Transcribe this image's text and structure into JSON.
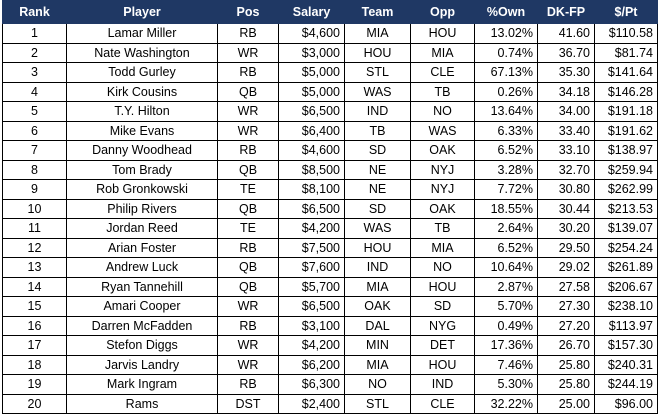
{
  "columns": [
    "Rank",
    "Player",
    "Pos",
    "Salary",
    "Team",
    "Opp",
    "%Own",
    "DK-FP",
    "$/Pt"
  ],
  "rows": [
    [
      "1",
      "Lamar Miller",
      "RB",
      "$4,600",
      "MIA",
      "HOU",
      "13.02%",
      "41.60",
      "$110.58"
    ],
    [
      "2",
      "Nate Washington",
      "WR",
      "$3,000",
      "HOU",
      "MIA",
      "0.74%",
      "36.70",
      "$81.74"
    ],
    [
      "3",
      "Todd Gurley",
      "RB",
      "$5,000",
      "STL",
      "CLE",
      "67.13%",
      "35.30",
      "$141.64"
    ],
    [
      "4",
      "Kirk Cousins",
      "QB",
      "$5,000",
      "WAS",
      "TB",
      "0.26%",
      "34.18",
      "$146.28"
    ],
    [
      "5",
      "T.Y. Hilton",
      "WR",
      "$6,500",
      "IND",
      "NO",
      "13.64%",
      "34.00",
      "$191.18"
    ],
    [
      "6",
      "Mike Evans",
      "WR",
      "$6,400",
      "TB",
      "WAS",
      "6.33%",
      "33.40",
      "$191.62"
    ],
    [
      "7",
      "Danny Woodhead",
      "RB",
      "$4,600",
      "SD",
      "OAK",
      "6.52%",
      "33.10",
      "$138.97"
    ],
    [
      "8",
      "Tom Brady",
      "QB",
      "$8,500",
      "NE",
      "NYJ",
      "3.28%",
      "32.70",
      "$259.94"
    ],
    [
      "9",
      "Rob Gronkowski",
      "TE",
      "$8,100",
      "NE",
      "NYJ",
      "7.72%",
      "30.80",
      "$262.99"
    ],
    [
      "10",
      "Philip Rivers",
      "QB",
      "$6,500",
      "SD",
      "OAK",
      "18.55%",
      "30.44",
      "$213.53"
    ],
    [
      "11",
      "Jordan Reed",
      "TE",
      "$4,200",
      "WAS",
      "TB",
      "2.64%",
      "30.20",
      "$139.07"
    ],
    [
      "12",
      "Arian Foster",
      "RB",
      "$7,500",
      "HOU",
      "MIA",
      "6.52%",
      "29.50",
      "$254.24"
    ],
    [
      "13",
      "Andrew Luck",
      "QB",
      "$7,600",
      "IND",
      "NO",
      "10.64%",
      "29.02",
      "$261.89"
    ],
    [
      "14",
      "Ryan Tannehill",
      "QB",
      "$5,700",
      "MIA",
      "HOU",
      "2.87%",
      "27.58",
      "$206.67"
    ],
    [
      "15",
      "Amari Cooper",
      "WR",
      "$6,500",
      "OAK",
      "SD",
      "5.70%",
      "27.30",
      "$238.10"
    ],
    [
      "16",
      "Darren McFadden",
      "RB",
      "$3,100",
      "DAL",
      "NYG",
      "0.49%",
      "27.20",
      "$113.97"
    ],
    [
      "17",
      "Stefon Diggs",
      "WR",
      "$4,200",
      "MIN",
      "DET",
      "17.36%",
      "26.70",
      "$157.30"
    ],
    [
      "18",
      "Jarvis Landry",
      "WR",
      "$6,200",
      "MIA",
      "HOU",
      "7.46%",
      "25.80",
      "$240.31"
    ],
    [
      "19",
      "Mark Ingram",
      "RB",
      "$6,300",
      "NO",
      "IND",
      "5.30%",
      "25.80",
      "$244.19"
    ],
    [
      "20",
      "Rams",
      "DST",
      "$2,400",
      "STL",
      "CLE",
      "32.22%",
      "25.00",
      "$96.00"
    ]
  ],
  "colors": {
    "header_background": "#1f3864",
    "header_text": "#ffffff",
    "grid_line": "#000000"
  }
}
